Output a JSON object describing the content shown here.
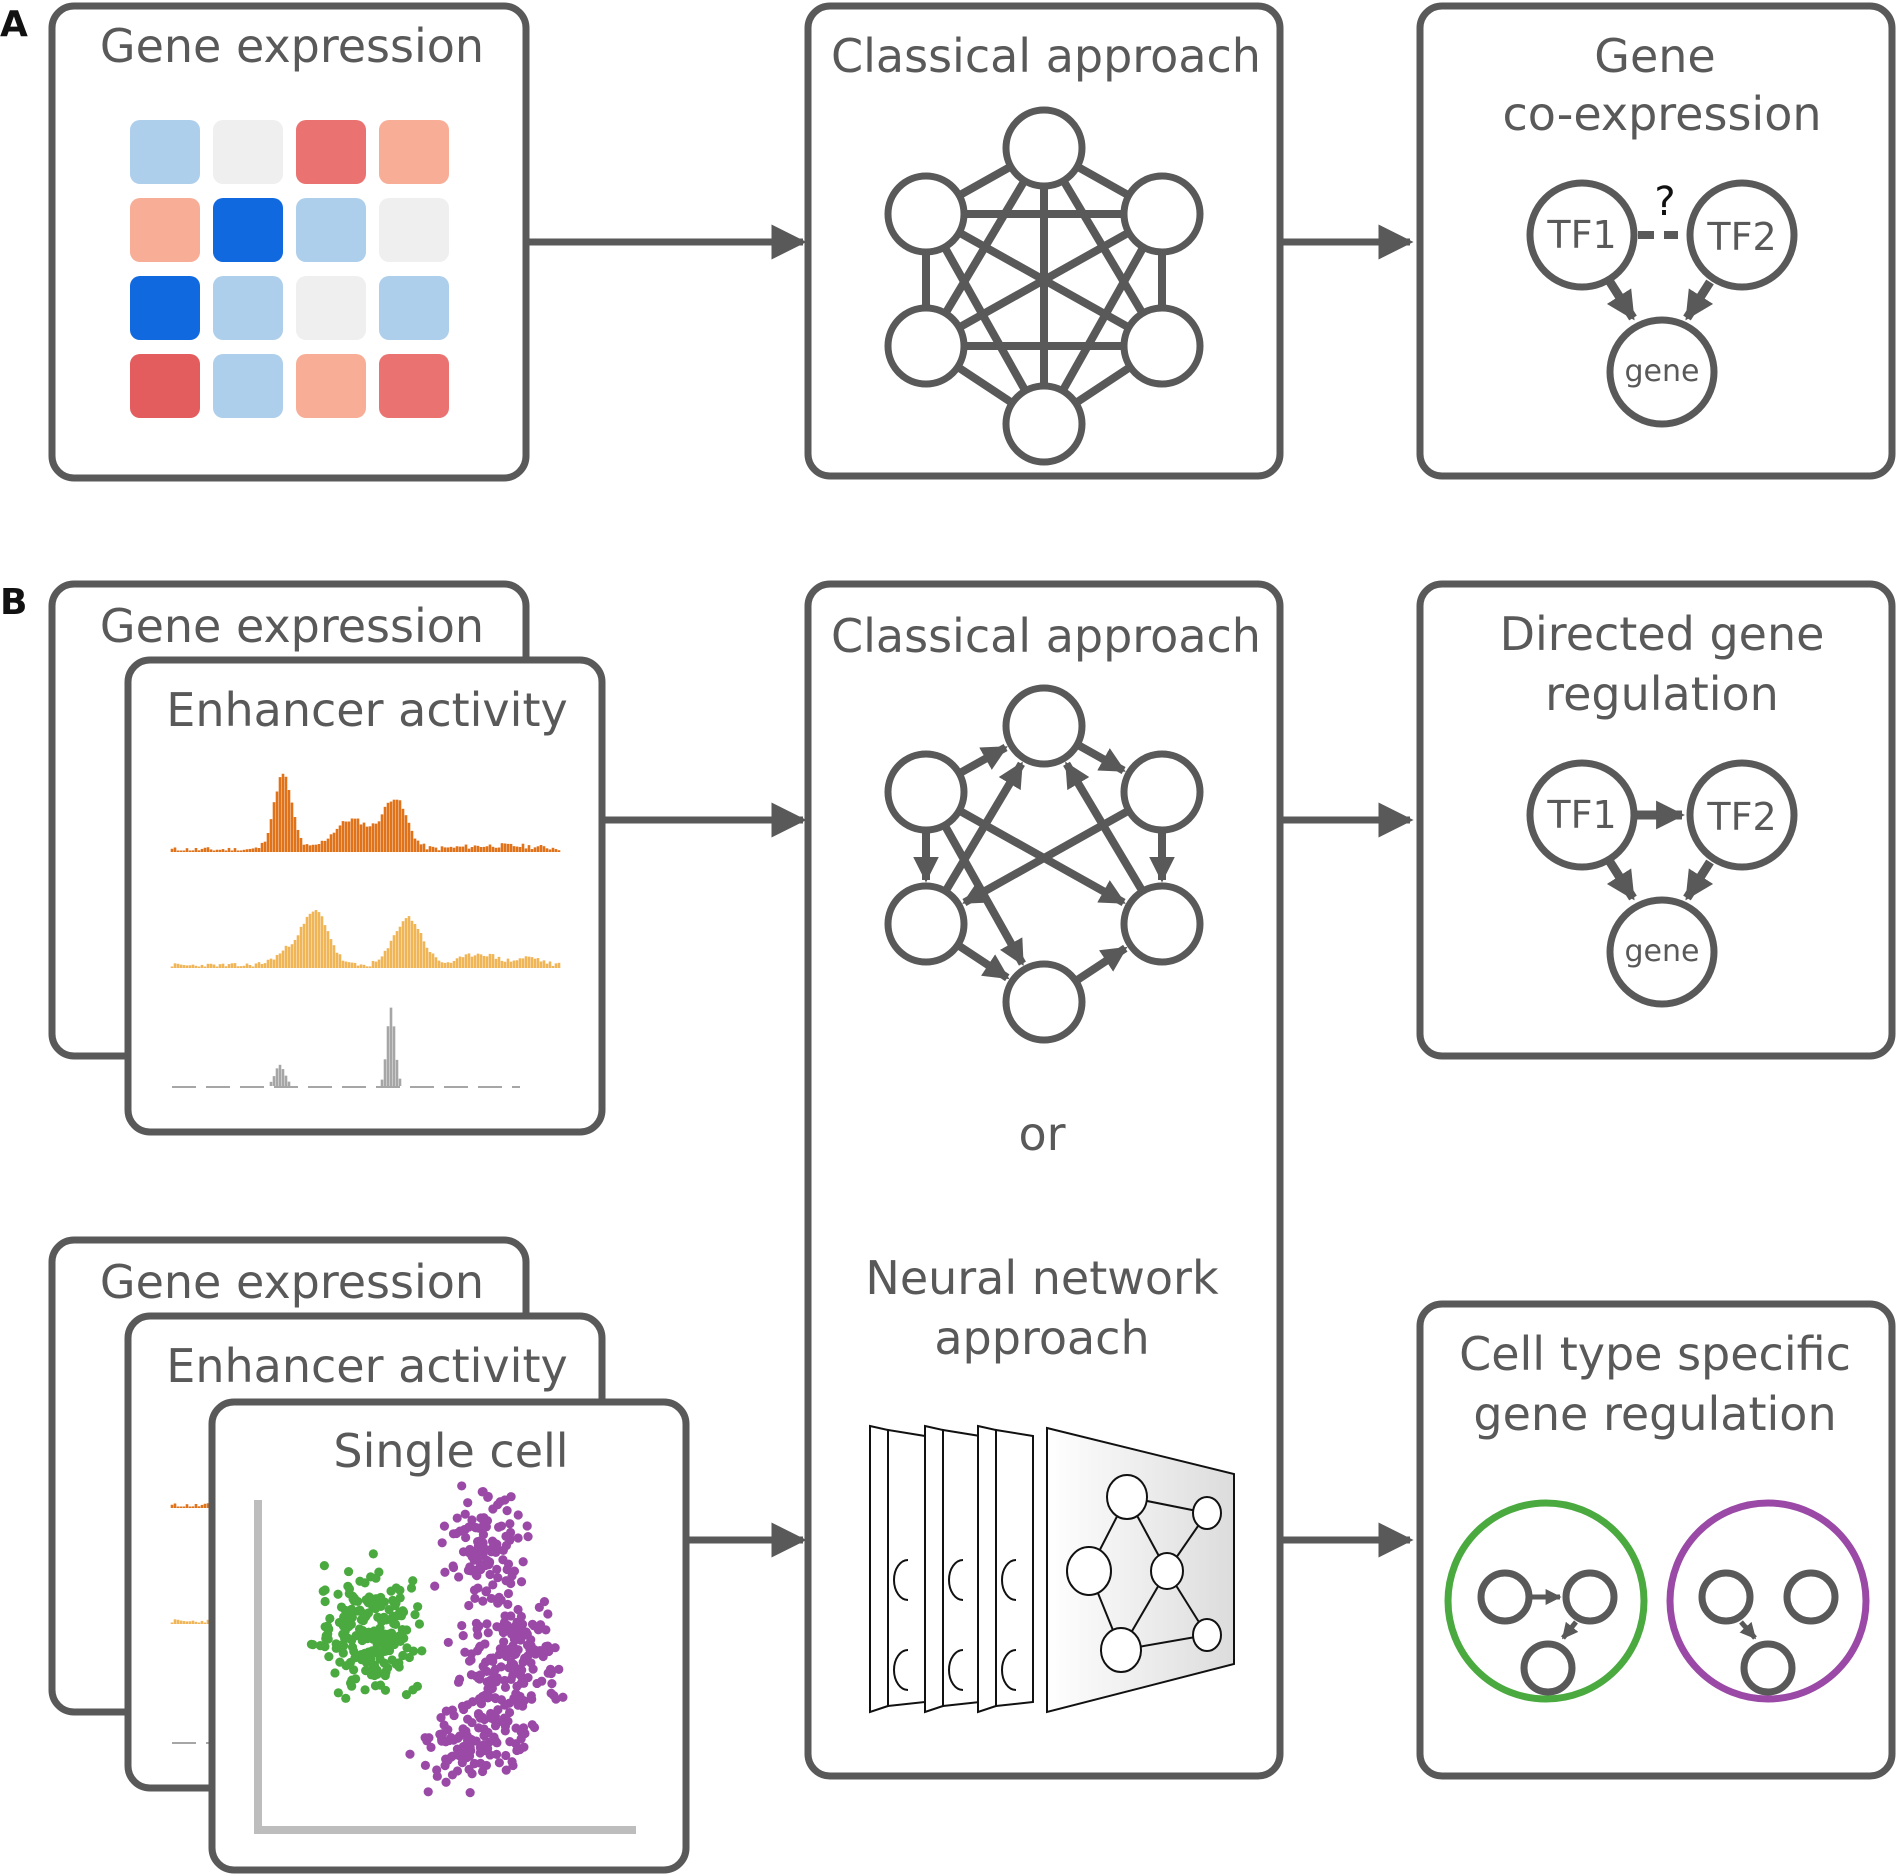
{
  "panel_a": {
    "letter": "A",
    "input_title": "Gene expression",
    "method_title": "Classical approach",
    "output_title_line1": "Gene",
    "output_title_line2": "co-expression",
    "tf1": "TF1",
    "tf2": "TF2",
    "gene": "gene",
    "question": "?",
    "heatmap_colors": [
      [
        "#aecfeb",
        "#efefef",
        "#ea7372",
        "#f8ad97"
      ],
      [
        "#f8ad97",
        "#1169e0",
        "#aecfeb",
        "#efefef"
      ],
      [
        "#1169e0",
        "#aecfeb",
        "#efefef",
        "#aecfeb"
      ],
      [
        "#e35c5e",
        "#aecfeb",
        "#f8ad97",
        "#ea7372"
      ]
    ]
  },
  "panel_b": {
    "letter": "B",
    "stack1_back_title": "Gene expression",
    "stack1_front_title": "Enhancer activity",
    "stack2_back_title": "Gene expression",
    "stack2_mid_title": "Enhancer activity",
    "stack2_front_title": "Single cell",
    "method_title": "Classical approach",
    "or_text": "or",
    "nn_title_line1": "Neural network",
    "nn_title_line2": "approach",
    "output1_title_line1": "Directed gene",
    "output1_title_line2": "regulation",
    "tf1": "TF1",
    "tf2": "TF2",
    "gene": "gene",
    "output2_title_line1": "Cell type specific",
    "output2_title_line2": "gene regulation"
  },
  "colors": {
    "stroke": "#595959",
    "track_dark_orange": "#e0721a",
    "track_light_orange": "#f0b557",
    "track_gray": "#a6a6a6",
    "cluster_green": "#4aaa3f",
    "cluster_purple": "#9a4aa6",
    "axis_gray": "#bdbdbd"
  },
  "icons": [
    "network-undirected-icon",
    "network-directed-icon",
    "neural-network-layers-icon",
    "scatter-plot-icon",
    "signal-track-icon"
  ]
}
